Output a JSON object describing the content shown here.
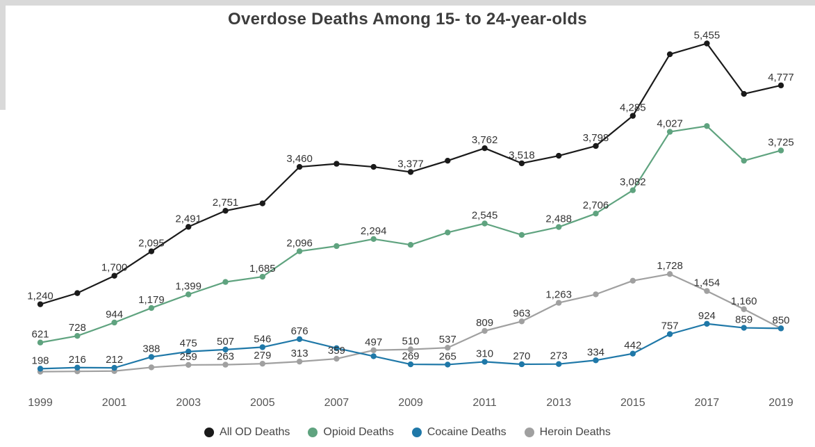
{
  "chart_data": {
    "type": "line",
    "title": "Overdose Deaths Among 15- to 24-year-olds",
    "xlabel": "",
    "ylabel": "",
    "x": [
      1999,
      2000,
      2001,
      2002,
      2003,
      2004,
      2005,
      2006,
      2007,
      2008,
      2009,
      2010,
      2011,
      2012,
      2013,
      2014,
      2015,
      2016,
      2017,
      2018,
      2019
    ],
    "x_tick_labels": [
      "1999",
      "2001",
      "2003",
      "2005",
      "2007",
      "2009",
      "2011",
      "2013",
      "2015",
      "2017",
      "2019"
    ],
    "ylim": [
      0,
      5800
    ],
    "grid": false,
    "legend_position": "bottom",
    "series": [
      {
        "name": "All OD Deaths",
        "color": "#1a1a1a",
        "values": [
          1240,
          1420,
          1700,
          2095,
          2491,
          2751,
          2870,
          3460,
          3510,
          3460,
          3377,
          3560,
          3762,
          3518,
          3640,
          3798,
          4285,
          5280,
          5455,
          4640,
          4777
        ],
        "labels": [
          "1,240",
          "",
          "1,700",
          "2,095",
          "2,491",
          "2,751",
          "",
          "3,460",
          "",
          "",
          "3,377",
          "",
          "3,762",
          "3,518",
          "",
          "3,798",
          "4,285",
          "",
          "5,455",
          "",
          "4,777"
        ]
      },
      {
        "name": "Opioid Deaths",
        "color": "#5fa37f",
        "values": [
          621,
          728,
          944,
          1179,
          1399,
          1600,
          1685,
          2096,
          2180,
          2294,
          2200,
          2400,
          2545,
          2360,
          2488,
          2706,
          3082,
          4027,
          4120,
          3560,
          3725
        ],
        "labels": [
          "621",
          "728",
          "944",
          "1,179",
          "1,399",
          "",
          "1,685",
          "2,096",
          "",
          "2,294",
          "",
          "",
          "2,545",
          "",
          "2,488",
          "2,706",
          "3,082",
          "4,027",
          "",
          "",
          "3,725"
        ]
      },
      {
        "name": "Cocaine Deaths",
        "color": "#1f78a8",
        "values": [
          198,
          216,
          212,
          388,
          475,
          507,
          546,
          676,
          530,
          400,
          269,
          265,
          310,
          270,
          273,
          334,
          442,
          757,
          924,
          859,
          850
        ],
        "labels": [
          "198",
          "216",
          "212",
          "388",
          "475",
          "507",
          "546",
          "676",
          "",
          "",
          "269",
          "265",
          "310",
          "270",
          "273",
          "334",
          "442",
          "757",
          "924",
          "859",
          ""
        ]
      },
      {
        "name": "Heroin Deaths",
        "color": "#a0a0a0",
        "values": [
          150,
          155,
          160,
          220,
          259,
          263,
          279,
          313,
          359,
          497,
          510,
          537,
          809,
          963,
          1263,
          1400,
          1620,
          1728,
          1454,
          1160,
          850
        ],
        "labels": [
          "",
          "",
          "",
          "",
          "259",
          "263",
          "279",
          "313",
          "359",
          "497",
          "510",
          "537",
          "809",
          "963",
          "1,263",
          "",
          "",
          "1,728",
          "1,454",
          "1,160",
          "850"
        ]
      }
    ]
  }
}
